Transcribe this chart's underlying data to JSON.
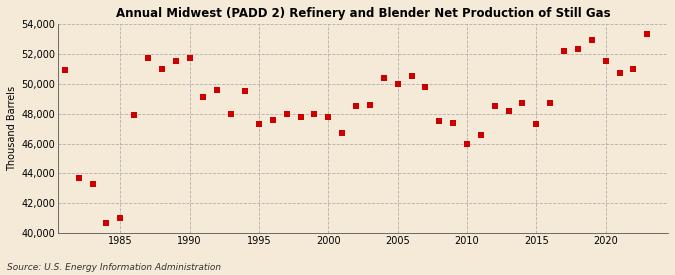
{
  "title": "Annual Midwest (PADD 2) Refinery and Blender Net Production of Still Gas",
  "ylabel": "Thousand Barrels",
  "source": "Source: U.S. Energy Information Administration",
  "background_color": "#f5ead8",
  "plot_background_color": "#f5ead8",
  "marker_color": "#cc0000",
  "marker_size": 18,
  "ylim": [
    40000,
    54000
  ],
  "yticks": [
    40000,
    42000,
    44000,
    46000,
    48000,
    50000,
    52000,
    54000
  ],
  "xticks": [
    1985,
    1990,
    1995,
    2000,
    2005,
    2010,
    2015,
    2020
  ],
  "xlim": [
    1980.5,
    2024.5
  ],
  "years": [
    1981,
    1982,
    1983,
    1984,
    1985,
    1986,
    1987,
    1988,
    1989,
    1990,
    1991,
    1992,
    1993,
    1994,
    1995,
    1996,
    1997,
    1998,
    1999,
    2000,
    2001,
    2002,
    2003,
    2004,
    2005,
    2006,
    2007,
    2008,
    2009,
    2010,
    2011,
    2012,
    2013,
    2014,
    2015,
    2016,
    2017,
    2018,
    2019,
    2020,
    2021,
    2022,
    2023
  ],
  "values": [
    50900,
    43700,
    43300,
    40700,
    41000,
    47900,
    51700,
    51000,
    51500,
    51700,
    49100,
    49600,
    48000,
    49500,
    47300,
    47600,
    48000,
    47800,
    48000,
    47800,
    46700,
    48500,
    48600,
    50400,
    50000,
    50500,
    49800,
    47500,
    47400,
    46000,
    46600,
    48500,
    48200,
    48700,
    47300,
    48700,
    52200,
    52300,
    52900,
    51500,
    50700,
    51000,
    53300
  ]
}
